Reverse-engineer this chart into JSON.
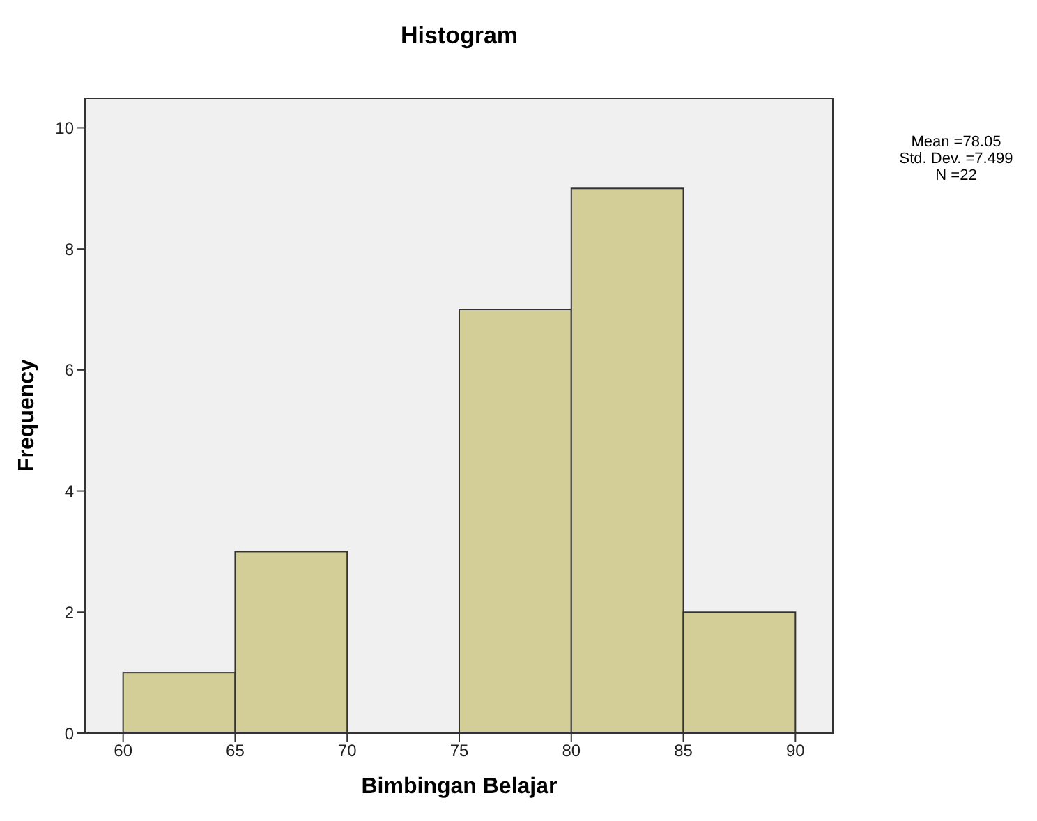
{
  "chart_data": {
    "type": "histogram",
    "title": "Histogram",
    "xlabel": "Bimbingan Belajar",
    "ylabel": "Frequency",
    "bins": [
      60,
      65,
      70,
      75,
      80,
      85,
      90
    ],
    "values": [
      1,
      3,
      0,
      7,
      9,
      2
    ],
    "color": "#d3ce97",
    "xlim": [
      58.3,
      91.7
    ],
    "xticks": [
      60,
      65,
      70,
      75,
      80,
      85,
      90
    ],
    "ylim": [
      0,
      10.5
    ],
    "yticks": [
      0,
      2,
      4,
      6,
      8,
      10
    ],
    "grid": false,
    "annotations": [
      "Mean =78.05",
      "Std. Dev. =7.499",
      "N =22"
    ]
  }
}
